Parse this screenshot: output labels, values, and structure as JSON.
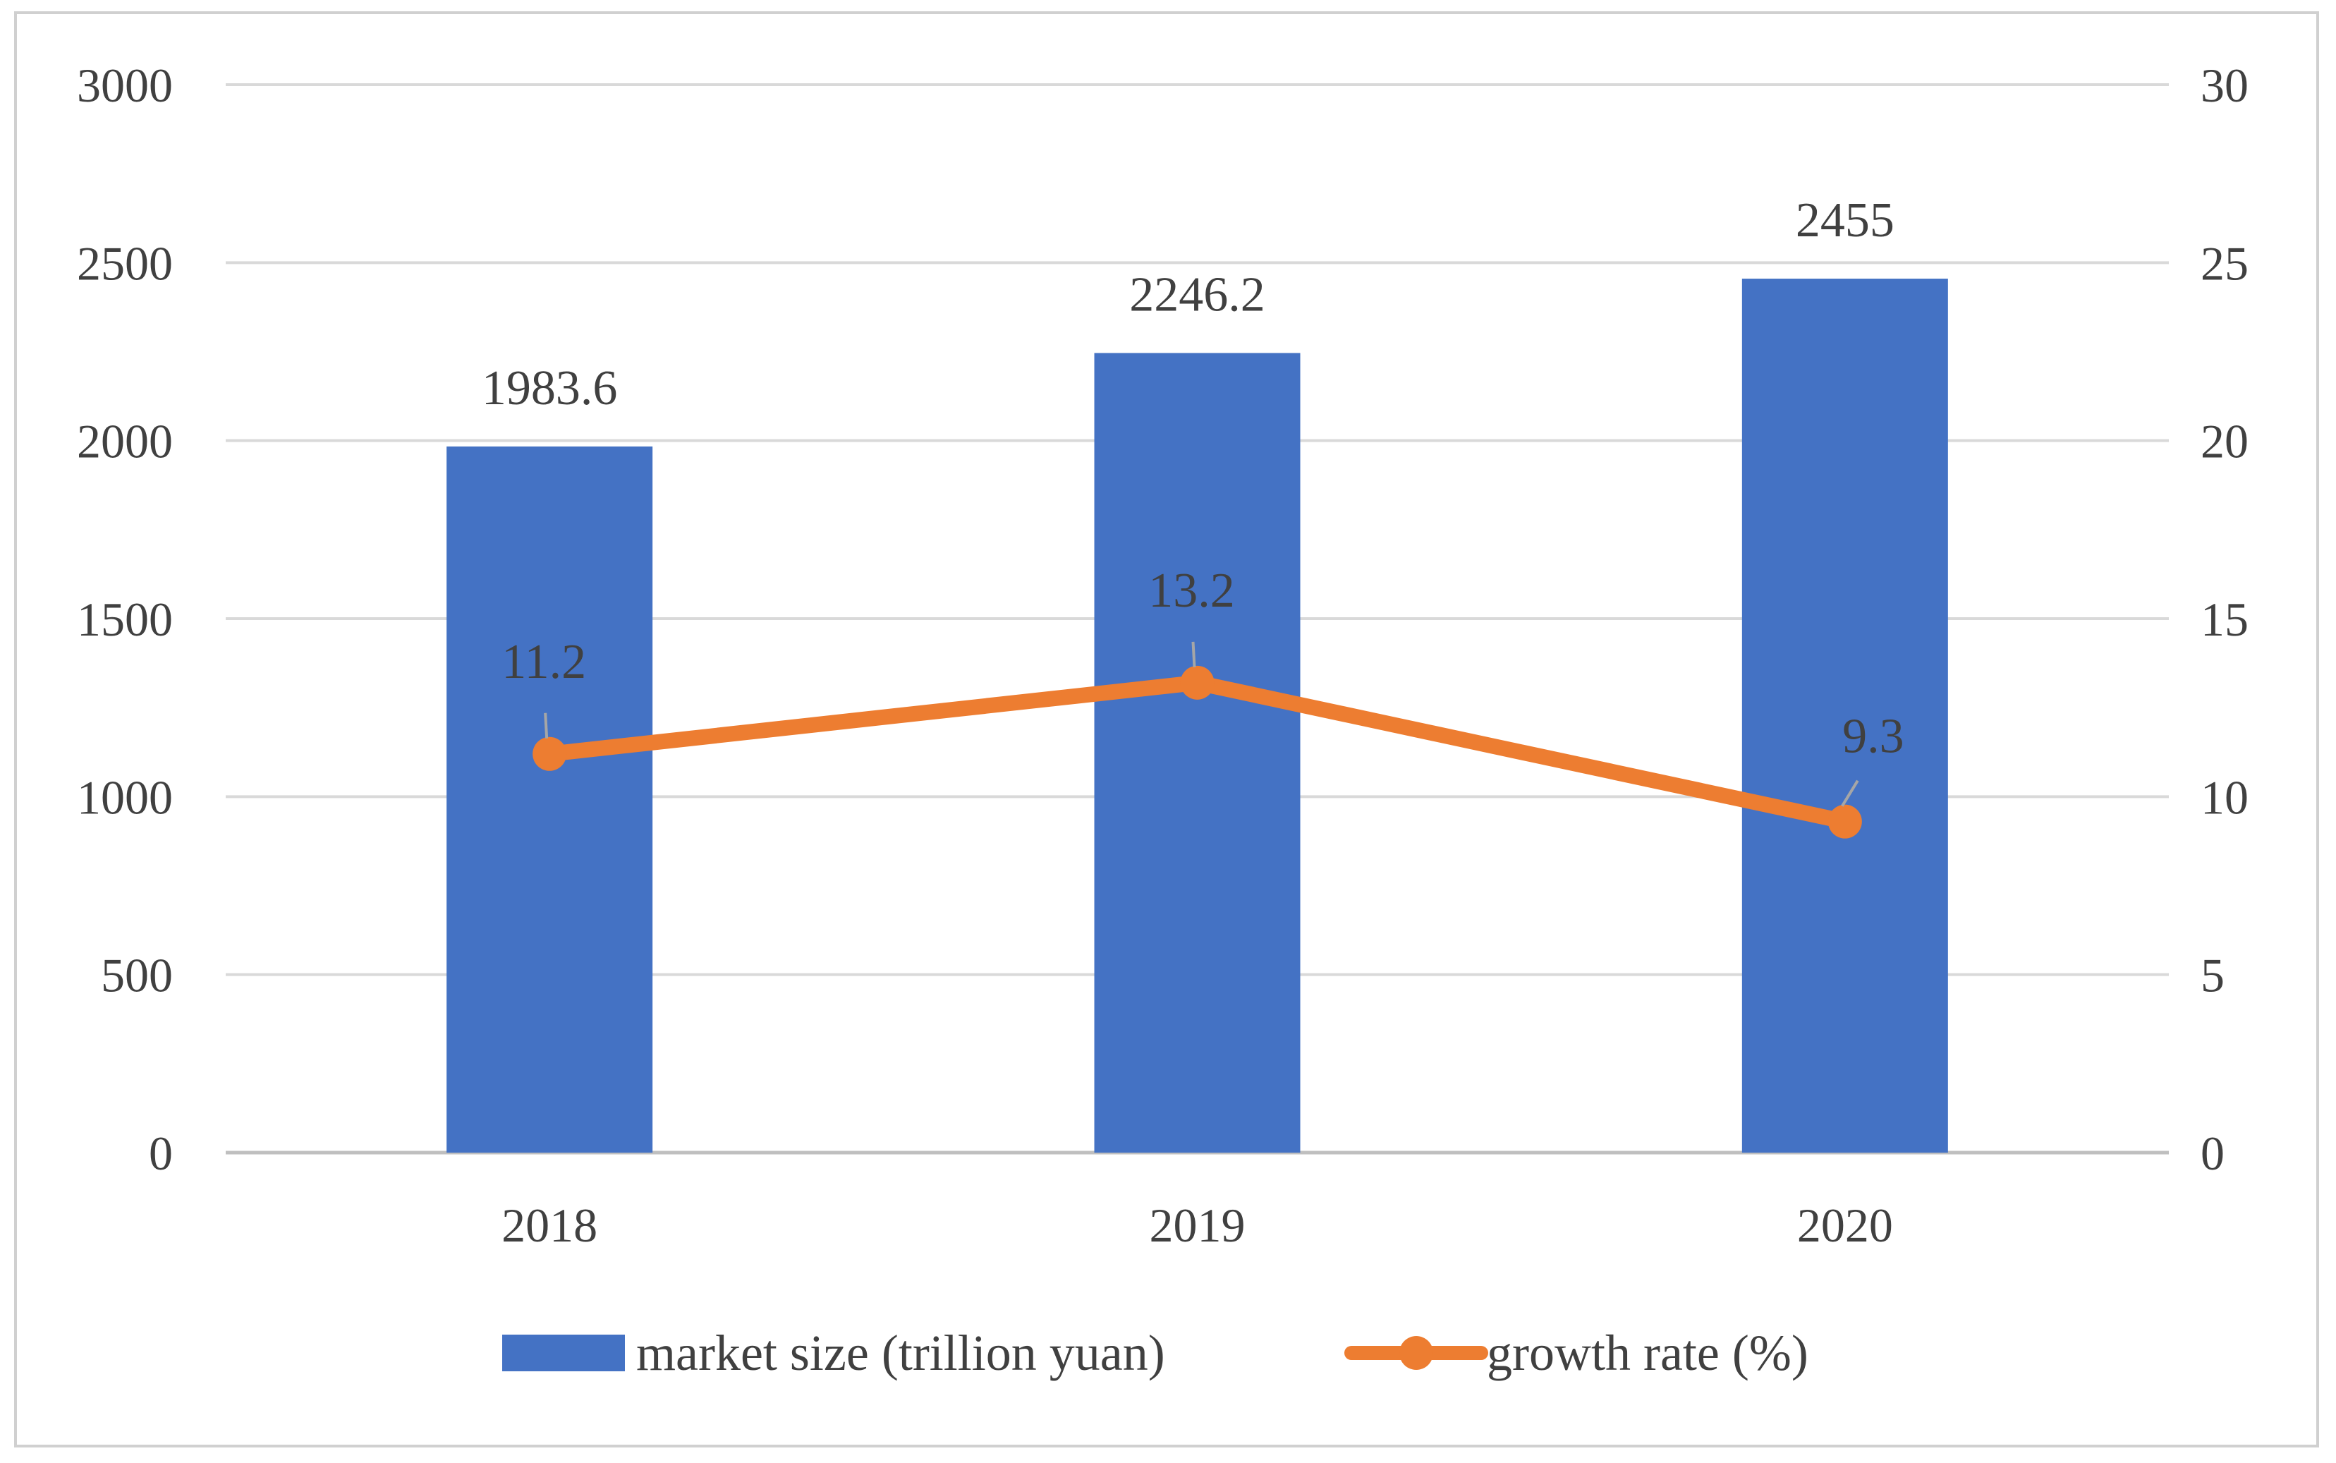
{
  "chart_data": {
    "type": "bar",
    "categories": [
      "2018",
      "2019",
      "2020"
    ],
    "series": [
      {
        "name": "market size (trillion yuan)",
        "type": "bar",
        "axis": "left",
        "color": "#4472C4",
        "values": [
          1983.6,
          2246.2,
          2455
        ],
        "labels": [
          "1983.6",
          "2246.2",
          "2455"
        ]
      },
      {
        "name": "growth rate (%)",
        "type": "line",
        "axis": "right",
        "color": "#ED7D31",
        "values": [
          11.2,
          13.2,
          9.3
        ],
        "labels": [
          "11.2",
          "13.2",
          "9.3"
        ]
      }
    ],
    "y_left": {
      "range": [
        0,
        3000
      ],
      "ticks": [
        "0",
        "500",
        "1000",
        "1500",
        "2000",
        "2500",
        "3000"
      ]
    },
    "y_right": {
      "range": [
        0,
        30
      ],
      "ticks": [
        "0",
        "5",
        "10",
        "15",
        "20",
        "25",
        "30"
      ]
    },
    "grid": true,
    "legend_position": "bottom"
  }
}
